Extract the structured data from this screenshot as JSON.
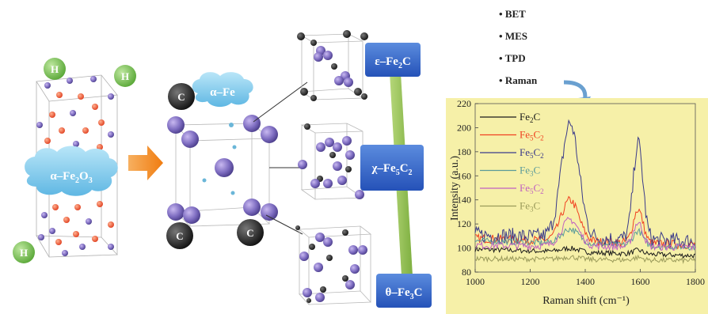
{
  "left_phase": {
    "label_html": "α–Fe<sub>2</sub>O<sub>3</sub>",
    "label": "α–Fe2O3"
  },
  "hydrogen_label": "H",
  "carbon_label": "C",
  "middle_phase": {
    "label": "α–Fe"
  },
  "carbide_boxes": [
    {
      "label": "ε–Fe2C",
      "main": "ε–Fe",
      "sub": "2",
      "tail": "C"
    },
    {
      "label": "χ–Fe5C2",
      "main": "χ–Fe",
      "sub": "5",
      "tail": "C",
      "sub2": "2"
    },
    {
      "label": "θ–Fe3C",
      "main": "θ–Fe",
      "sub": "3",
      "tail": "C"
    }
  ],
  "methods": [
    "BET",
    "MES",
    "TPD",
    "Raman"
  ],
  "chart_data": {
    "type": "line",
    "xlabel": "Raman shift (cm⁻¹)",
    "ylabel": "Intensity (a.u.)",
    "xlim": [
      1000,
      1800
    ],
    "ylim": [
      80,
      220
    ],
    "xticks": [
      1000,
      1200,
      1400,
      1600,
      1800
    ],
    "yticks": [
      80,
      100,
      120,
      140,
      160,
      180,
      200,
      220
    ],
    "legend_position": "top-left",
    "series": [
      {
        "name": "Fe2C",
        "color": "#1a1a1a",
        "base": 95,
        "d": 3,
        "g": 3
      },
      {
        "name": "Fe5C2",
        "color": "#f04020",
        "base": 104,
        "d": 34,
        "g": 28
      },
      {
        "name": "Fe5C2",
        "color": "#3a3a8a",
        "base": 107,
        "d": 95,
        "g": 80
      },
      {
        "name": "Fe3C",
        "color": "#5a9a9a",
        "base": 102,
        "d": 12,
        "g": 12
      },
      {
        "name": "Fe5C2",
        "color": "#c060c0",
        "base": 101,
        "d": 22,
        "g": 20
      },
      {
        "name": "Fe3C",
        "color": "#9a9a5a",
        "base": 90,
        "d": 2,
        "g": 2
      }
    ]
  }
}
